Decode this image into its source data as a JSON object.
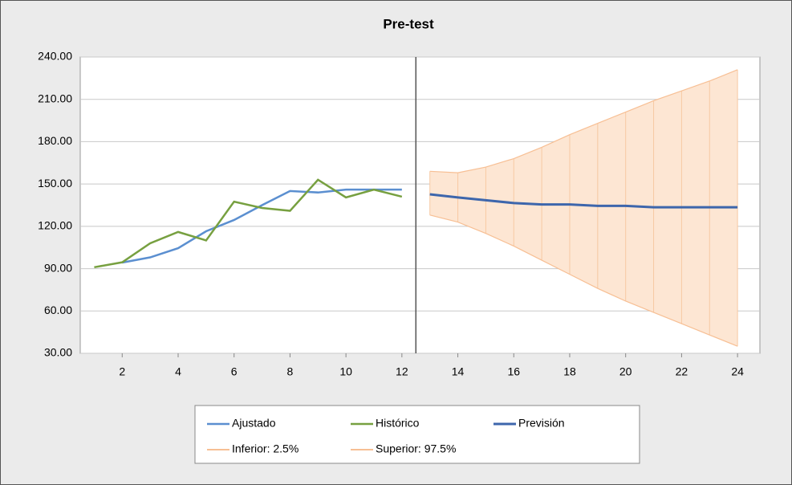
{
  "chart_data": {
    "type": "line",
    "title": "Pre-test",
    "x": [
      1,
      2,
      3,
      4,
      5,
      6,
      7,
      8,
      9,
      10,
      11,
      12,
      13,
      14,
      15,
      16,
      17,
      18,
      19,
      20,
      21,
      22,
      23,
      24
    ],
    "series": [
      {
        "name": "Ajustado",
        "color": "#5b8fd0",
        "values": [
          null,
          94.3,
          98,
          104.5,
          116.5,
          124.5,
          135,
          145,
          144,
          146,
          146,
          146,
          null,
          null,
          null,
          null,
          null,
          null,
          null,
          null,
          null,
          null,
          null,
          null
        ]
      },
      {
        "name": "Histórico",
        "color": "#77a040",
        "values": [
          91,
          94.5,
          108,
          116,
          110,
          137.5,
          133,
          131,
          153,
          140.5,
          146,
          141,
          null,
          null,
          null,
          null,
          null,
          null,
          null,
          null,
          null,
          null,
          null,
          null
        ]
      },
      {
        "name": "Previsión",
        "color": "#3d66ac",
        "values": [
          null,
          null,
          null,
          null,
          null,
          null,
          null,
          null,
          null,
          null,
          null,
          null,
          142.7,
          140.5,
          138.5,
          136.5,
          135.5,
          135.5,
          134.5,
          134.5,
          133.5,
          133.5,
          133.5,
          133.5
        ]
      },
      {
        "name": "Inferior: 2.5%",
        "color": "#f7bf94",
        "values": [
          null,
          null,
          null,
          null,
          null,
          null,
          null,
          null,
          null,
          null,
          null,
          null,
          128,
          123,
          115,
          106,
          96,
          86,
          76,
          67,
          59,
          51,
          43,
          35
        ]
      },
      {
        "name": "Superior: 97.5%",
        "color": "#f7bf94",
        "values": [
          null,
          null,
          null,
          null,
          null,
          null,
          null,
          null,
          null,
          null,
          null,
          null,
          159,
          158,
          162,
          168,
          176,
          185,
          193,
          201,
          209,
          216,
          223,
          231
        ]
      }
    ],
    "band_color": "#fde6d3",
    "divider_x": 12.5,
    "xlim": [
      0.5,
      24.8
    ],
    "xticks": [
      2,
      4,
      6,
      8,
      10,
      12,
      14,
      16,
      18,
      20,
      22,
      24
    ],
    "ylim": [
      30,
      240
    ],
    "yticks": [
      {
        "value": 30,
        "label": "30.00"
      },
      {
        "value": 60,
        "label": "60.00"
      },
      {
        "value": 90,
        "label": "90.00"
      },
      {
        "value": 120,
        "label": "120.00"
      },
      {
        "value": 150,
        "label": "150.00"
      },
      {
        "value": 180,
        "label": "180.00"
      },
      {
        "value": 210,
        "label": "210.00"
      },
      {
        "value": 240,
        "label": "240.00"
      }
    ],
    "grid": true
  }
}
